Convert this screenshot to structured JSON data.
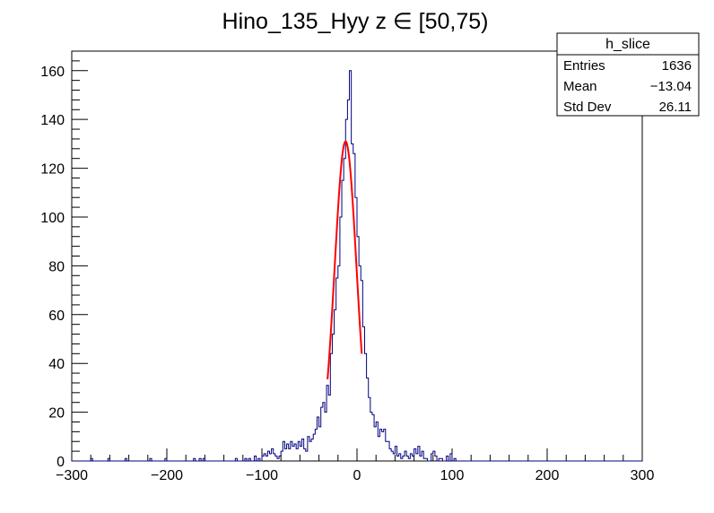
{
  "chart_data": {
    "type": "histogram",
    "title": "Hino_135_Hyy z  ∈ [50,75)",
    "xlabel": "",
    "ylabel": "",
    "xlim": [
      -300,
      300
    ],
    "ylim": [
      0,
      168
    ],
    "x_ticks": [
      -300,
      -200,
      -100,
      0,
      100,
      200,
      300
    ],
    "x_tick_labels": [
      "−300",
      "−200",
      "−100",
      "0",
      "100",
      "200",
      "300"
    ],
    "y_ticks": [
      0,
      20,
      40,
      60,
      80,
      100,
      120,
      140,
      160
    ],
    "y_tick_labels": [
      "0",
      "20",
      "40",
      "60",
      "80",
      "100",
      "120",
      "140",
      "160"
    ],
    "grid": false,
    "histogram": {
      "name": "h_slice",
      "color": "#000080",
      "bin_width": 2,
      "bins": [
        [
          -280,
          1
        ],
        [
          -262,
          1
        ],
        [
          -244,
          1
        ],
        [
          -218,
          1
        ],
        [
          -202,
          1
        ],
        [
          -172,
          1
        ],
        [
          -166,
          1
        ],
        [
          -162,
          1
        ],
        [
          -128,
          1
        ],
        [
          -118,
          1
        ],
        [
          -114,
          1
        ],
        [
          -108,
          2
        ],
        [
          -104,
          1
        ],
        [
          -100,
          2
        ],
        [
          -98,
          3
        ],
        [
          -96,
          2
        ],
        [
          -94,
          4
        ],
        [
          -92,
          3
        ],
        [
          -90,
          5
        ],
        [
          -88,
          3
        ],
        [
          -86,
          2
        ],
        [
          -84,
          1
        ],
        [
          -82,
          2
        ],
        [
          -80,
          4
        ],
        [
          -78,
          8
        ],
        [
          -76,
          5
        ],
        [
          -74,
          7
        ],
        [
          -72,
          5
        ],
        [
          -70,
          8
        ],
        [
          -68,
          6
        ],
        [
          -66,
          7
        ],
        [
          -64,
          5
        ],
        [
          -62,
          8
        ],
        [
          -60,
          6
        ],
        [
          -58,
          9
        ],
        [
          -56,
          5
        ],
        [
          -54,
          4
        ],
        [
          -52,
          10
        ],
        [
          -50,
          8
        ],
        [
          -48,
          9
        ],
        [
          -46,
          11
        ],
        [
          -44,
          13
        ],
        [
          -42,
          18
        ],
        [
          -40,
          14
        ],
        [
          -38,
          22
        ],
        [
          -36,
          24
        ],
        [
          -34,
          20
        ],
        [
          -32,
          31
        ],
        [
          -30,
          27
        ],
        [
          -28,
          44
        ],
        [
          -26,
          52
        ],
        [
          -24,
          62
        ],
        [
          -22,
          75
        ],
        [
          -20,
          80
        ],
        [
          -18,
          100
        ],
        [
          -16,
          115
        ],
        [
          -14,
          124
        ],
        [
          -12,
          140
        ],
        [
          -10,
          148
        ],
        [
          -8,
          160
        ],
        [
          -6,
          130
        ],
        [
          -4,
          126
        ],
        [
          -2,
          108
        ],
        [
          0,
          92
        ],
        [
          2,
          80
        ],
        [
          4,
          74
        ],
        [
          6,
          55
        ],
        [
          8,
          44
        ],
        [
          10,
          34
        ],
        [
          12,
          26
        ],
        [
          14,
          20
        ],
        [
          16,
          19
        ],
        [
          18,
          14
        ],
        [
          20,
          16
        ],
        [
          22,
          10
        ],
        [
          24,
          13
        ],
        [
          26,
          12
        ],
        [
          28,
          13
        ],
        [
          30,
          8
        ],
        [
          32,
          8
        ],
        [
          34,
          5
        ],
        [
          36,
          4
        ],
        [
          38,
          3
        ],
        [
          40,
          6
        ],
        [
          42,
          2
        ],
        [
          44,
          3
        ],
        [
          46,
          1
        ],
        [
          48,
          2
        ],
        [
          50,
          4
        ],
        [
          52,
          2
        ],
        [
          54,
          1
        ],
        [
          56,
          3
        ],
        [
          58,
          2
        ],
        [
          60,
          5
        ],
        [
          62,
          3
        ],
        [
          64,
          6
        ],
        [
          66,
          2
        ],
        [
          68,
          4
        ],
        [
          70,
          1
        ],
        [
          72,
          1
        ],
        [
          78,
          3
        ],
        [
          80,
          4
        ],
        [
          82,
          2
        ],
        [
          86,
          1
        ],
        [
          88,
          1
        ],
        [
          94,
          2
        ],
        [
          98,
          3
        ],
        [
          102,
          1
        ]
      ]
    },
    "fit": {
      "type": "gaussian",
      "color": "#ff0000",
      "amplitude": 131,
      "mean": -12,
      "sigma": 11.5,
      "range": [
        -31,
        5
      ]
    },
    "stats_box": {
      "title": "h_slice",
      "placement": "top-right",
      "rows": [
        {
          "label": "Entries",
          "value": "1636"
        },
        {
          "label": "Mean",
          "value": "−13.04"
        },
        {
          "label": "Std Dev",
          "value": "26.11"
        }
      ]
    }
  }
}
